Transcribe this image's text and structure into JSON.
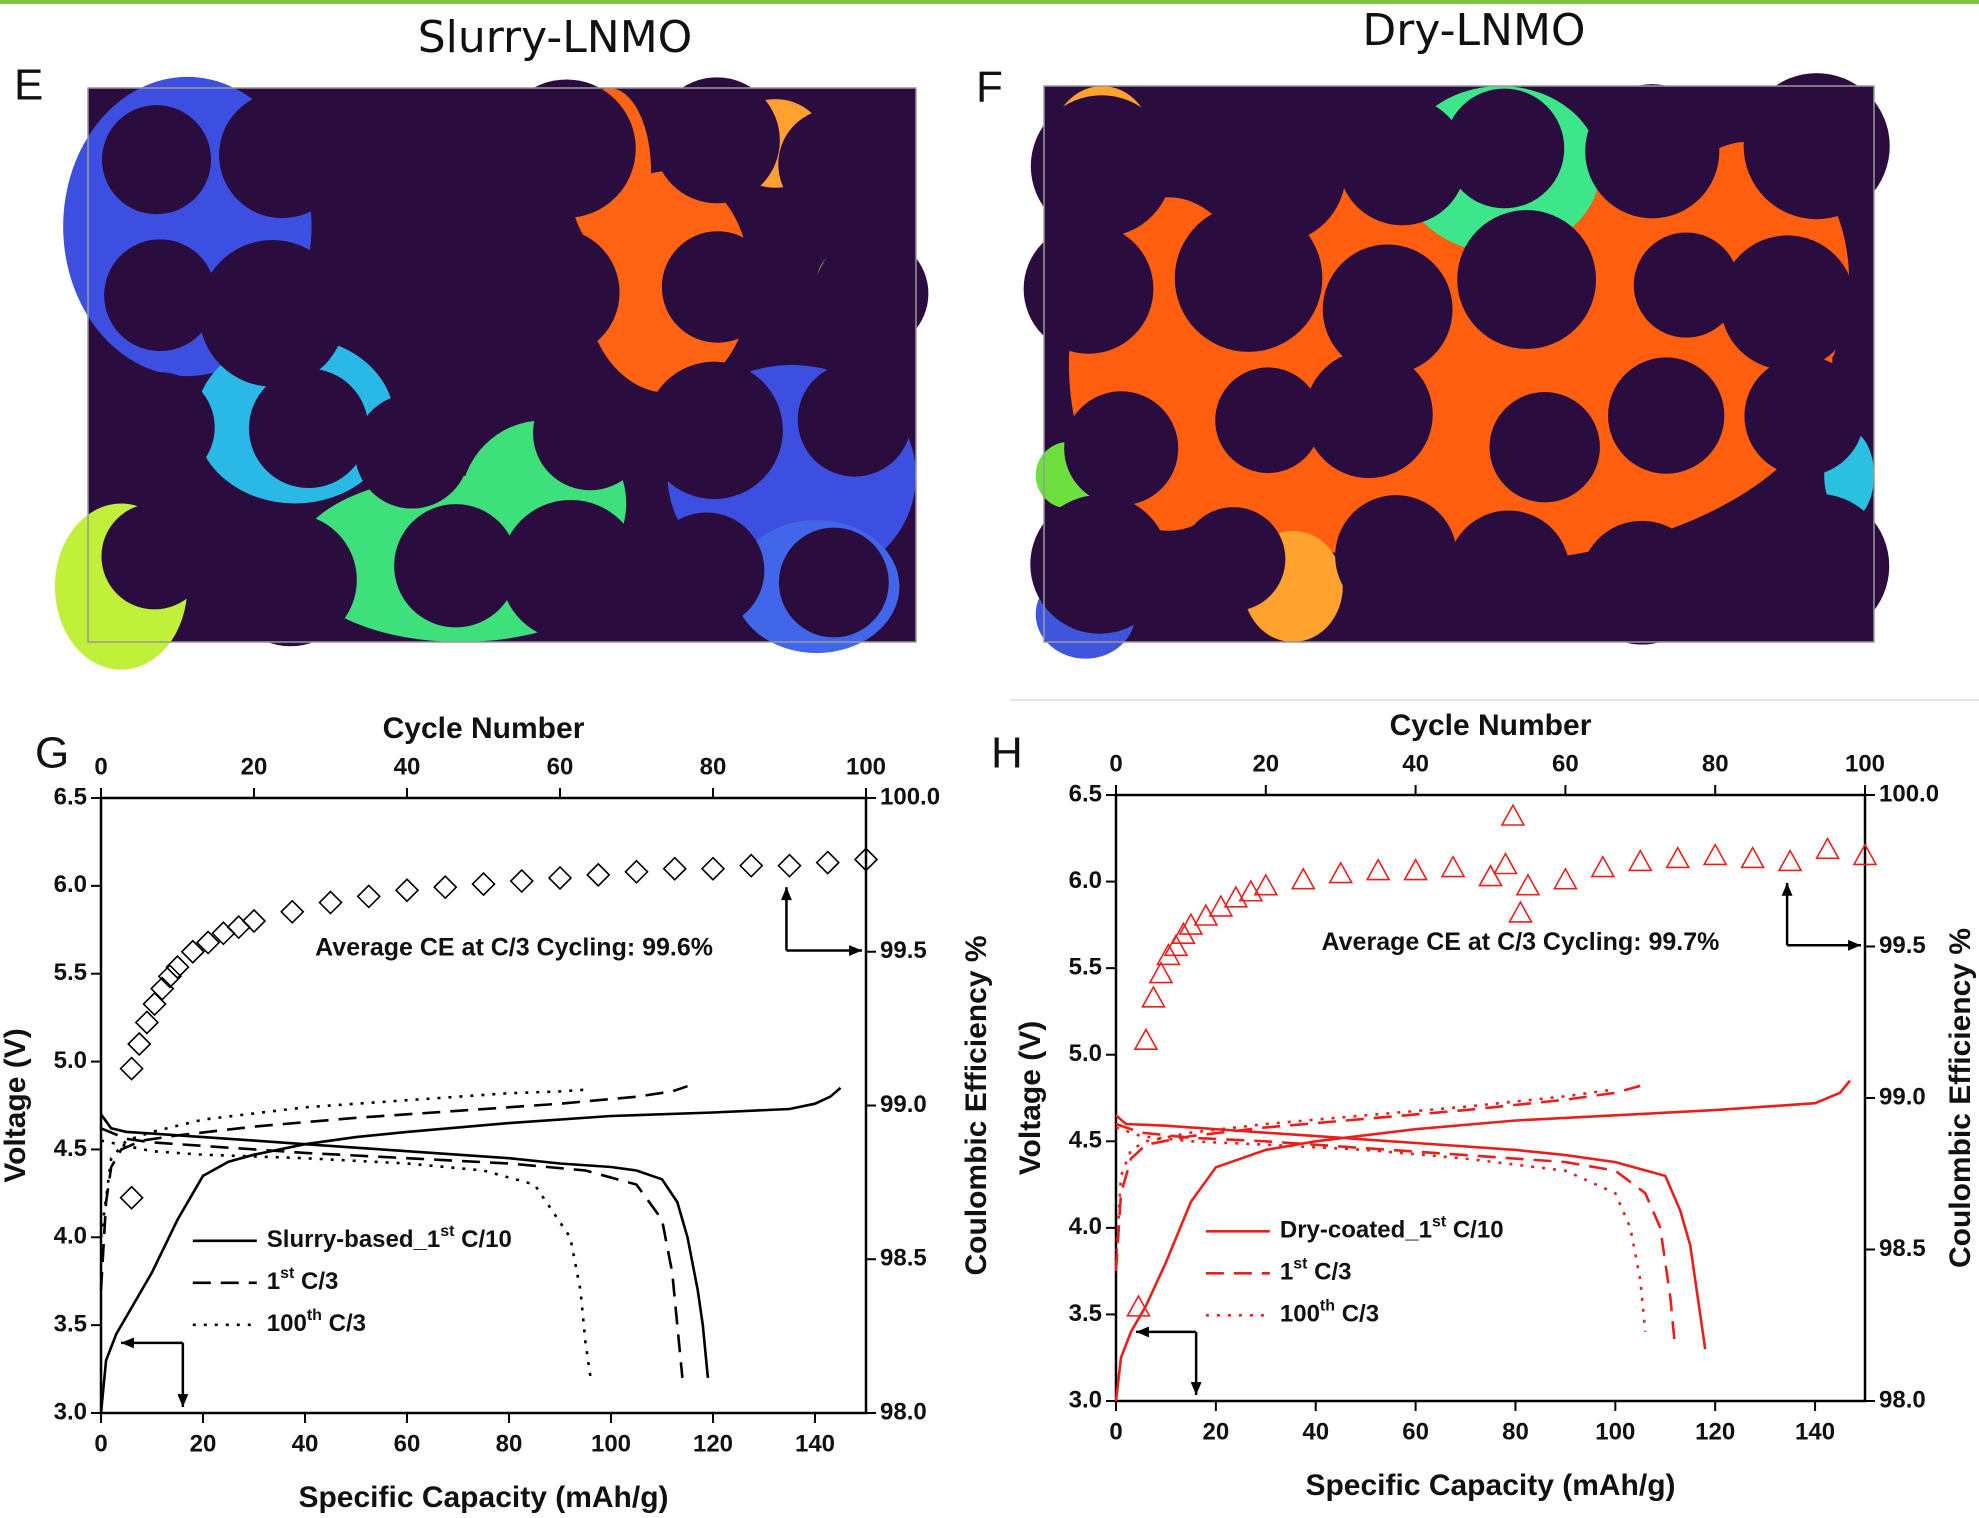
{
  "figure": {
    "panels": [
      {
        "label": "E",
        "title": "Slurry-LNMO"
      },
      {
        "label": "F",
        "title": "Dry-LNMO"
      }
    ]
  },
  "chart_data": [
    {
      "type": "line",
      "panel_label": "G",
      "color": "#000000",
      "xlabel": "Specific Capacity (mAh/g)",
      "ylabel": "Voltage (V)",
      "x2label": "Cycle Number",
      "y2label": "Coulombic Efficiency %",
      "annotation": "Average CE at C/3 Cycling: 99.6%",
      "legend": "lower left",
      "xlim": [
        0,
        150
      ],
      "xticks": [
        0,
        20,
        40,
        60,
        80,
        100,
        120,
        140
      ],
      "x2lim": [
        0,
        100
      ],
      "x2ticks": [
        0,
        20,
        40,
        60,
        80,
        100
      ],
      "ylim": [
        3.0,
        6.5
      ],
      "yticks": [
        {
          "value": 3,
          "label": "3.0"
        },
        3.5,
        {
          "value": 4,
          "label": "4.0"
        },
        4.5,
        {
          "value": 5,
          "label": "5.0"
        },
        5.5,
        {
          "value": 6,
          "label": "6.0"
        },
        6.5
      ],
      "y2lim": [
        98,
        100
      ],
      "y2ticks": [
        {
          "value": 98,
          "label": "98.0"
        },
        98.5,
        {
          "value": 99,
          "label": "99.0"
        },
        99.5,
        {
          "value": 100,
          "label": "100.0"
        }
      ],
      "series": [
        {
          "name": "Slurry-based_1st C/10",
          "color": "#000000",
          "dash": "solid",
          "x": [
            0,
            1,
            3,
            6,
            10,
            15,
            20,
            25,
            30,
            40,
            50,
            60,
            80,
            100,
            120,
            135,
            140,
            143,
            145,
            null,
            0,
            2,
            5,
            10,
            20,
            30,
            40,
            50,
            60,
            70,
            80,
            90,
            100,
            105,
            110,
            113,
            115,
            117,
            118,
            119
          ],
          "values": [
            3.0,
            3.3,
            3.45,
            3.6,
            3.8,
            4.1,
            4.35,
            4.43,
            4.47,
            4.53,
            4.57,
            4.6,
            4.65,
            4.69,
            4.71,
            4.73,
            4.76,
            4.8,
            4.85,
            null,
            4.7,
            4.62,
            4.6,
            4.59,
            4.57,
            4.55,
            4.53,
            4.51,
            4.49,
            4.47,
            4.45,
            4.42,
            4.4,
            4.38,
            4.33,
            4.2,
            4.0,
            3.7,
            3.5,
            3.2
          ]
        },
        {
          "name": "1st C/3",
          "color": "#000000",
          "dash": "dashed",
          "x": [
            0,
            1,
            2,
            4,
            8,
            15,
            30,
            50,
            70,
            90,
            105,
            112,
            115,
            null,
            0,
            5,
            10,
            20,
            40,
            60,
            80,
            95,
            105,
            110,
            112,
            113,
            114
          ],
          "values": [
            3.7,
            4.2,
            4.4,
            4.5,
            4.55,
            4.58,
            4.63,
            4.68,
            4.72,
            4.76,
            4.8,
            4.83,
            4.86,
            null,
            4.62,
            4.56,
            4.54,
            4.52,
            4.48,
            4.45,
            4.42,
            4.38,
            4.3,
            4.1,
            3.8,
            3.5,
            3.2
          ]
        },
        {
          "name": "100th C/3",
          "color": "#000000",
          "dash": "dotted",
          "x": [
            0,
            2,
            5,
            10,
            20,
            40,
            60,
            80,
            90,
            95,
            null,
            0,
            5,
            10,
            20,
            40,
            60,
            75,
            85,
            92,
            94,
            95,
            96
          ],
          "values": [
            4.0,
            4.45,
            4.55,
            4.6,
            4.67,
            4.74,
            4.78,
            4.82,
            4.83,
            4.84,
            null,
            4.55,
            4.52,
            4.49,
            4.47,
            4.45,
            4.42,
            4.38,
            4.3,
            4.0,
            3.7,
            3.4,
            3.2
          ]
        },
        {
          "type": "scatter",
          "marker": "diamond",
          "color": "#000000",
          "axis": "y2",
          "xaxis": "x2",
          "x": [
            4,
            4,
            5,
            6,
            7,
            8,
            9,
            10,
            12,
            14,
            16,
            18,
            20,
            25,
            30,
            35,
            40,
            45,
            50,
            55,
            60,
            65,
            70,
            75,
            80,
            85,
            90,
            95,
            100
          ],
          "values": [
            98.7,
            99.12,
            99.2,
            99.27,
            99.33,
            99.38,
            99.42,
            99.45,
            99.5,
            99.53,
            99.56,
            99.58,
            99.6,
            99.63,
            99.66,
            99.68,
            99.7,
            99.71,
            99.72,
            99.73,
            99.74,
            99.75,
            99.76,
            99.77,
            99.77,
            99.78,
            99.78,
            99.79,
            99.8
          ]
        }
      ]
    },
    {
      "type": "line",
      "panel_label": "H",
      "color": "#e8201c",
      "xlabel": "Specific Capacity (mAh/g)",
      "ylabel": "Voltage (V)",
      "x2label": "Cycle Number",
      "y2label": "Coulombic Efficiency %",
      "annotation": "Average CE at C/3 Cycling: 99.7%",
      "legend": "lower left",
      "xlim": [
        0,
        150
      ],
      "xticks": [
        0,
        20,
        40,
        60,
        80,
        100,
        120,
        140
      ],
      "x2lim": [
        0,
        100
      ],
      "x2ticks": [
        0,
        20,
        40,
        60,
        80,
        100
      ],
      "ylim": [
        3.0,
        6.5
      ],
      "yticks": [
        {
          "value": 3,
          "label": "3.0"
        },
        3.5,
        {
          "value": 4,
          "label": "4.0"
        },
        4.5,
        {
          "value": 5,
          "label": "5.0"
        },
        5.5,
        {
          "value": 6,
          "label": "6.0"
        },
        6.5
      ],
      "y2lim": [
        98,
        100
      ],
      "y2ticks": [
        {
          "value": 98,
          "label": "98.0"
        },
        98.5,
        {
          "value": 99,
          "label": "99.0"
        },
        99.5,
        {
          "value": 100,
          "label": "100.0"
        }
      ],
      "series": [
        {
          "name": "Dry-coated_1st C/10",
          "color": "#e8201c",
          "dash": "solid",
          "x": [
            0,
            1,
            3,
            6,
            10,
            15,
            20,
            30,
            40,
            60,
            80,
            100,
            120,
            140,
            145,
            147,
            null,
            0,
            2,
            10,
            20,
            40,
            60,
            80,
            90,
            100,
            110,
            113,
            115,
            116,
            117,
            118
          ],
          "values": [
            3.0,
            3.25,
            3.4,
            3.55,
            3.8,
            4.15,
            4.35,
            4.45,
            4.5,
            4.57,
            4.62,
            4.65,
            4.68,
            4.72,
            4.78,
            4.85,
            null,
            4.65,
            4.6,
            4.59,
            4.57,
            4.53,
            4.49,
            4.45,
            4.42,
            4.38,
            4.3,
            4.1,
            3.9,
            3.7,
            3.5,
            3.3
          ]
        },
        {
          "name": "1st C/3",
          "color": "#e8201c",
          "dash": "dashed",
          "x": [
            0,
            1,
            3,
            6,
            15,
            30,
            50,
            70,
            90,
            100,
            105,
            null,
            0,
            5,
            15,
            30,
            50,
            70,
            90,
            100,
            106,
            109,
            111,
            112
          ],
          "values": [
            3.75,
            4.2,
            4.4,
            4.48,
            4.53,
            4.58,
            4.63,
            4.68,
            4.74,
            4.78,
            4.82,
            null,
            4.6,
            4.55,
            4.52,
            4.5,
            4.46,
            4.42,
            4.38,
            4.33,
            4.2,
            4.0,
            3.6,
            3.3
          ]
        },
        {
          "name": "100th C/3",
          "color": "#e8201c",
          "dash": "dotted",
          "x": [
            0,
            1,
            3,
            6,
            15,
            30,
            50,
            70,
            90,
            100,
            null,
            0,
            5,
            15,
            30,
            50,
            70,
            90,
            100,
            103,
            105,
            106
          ],
          "values": [
            3.8,
            4.3,
            4.45,
            4.5,
            4.55,
            4.6,
            4.65,
            4.7,
            4.76,
            4.8,
            null,
            4.58,
            4.53,
            4.5,
            4.48,
            4.45,
            4.4,
            4.33,
            4.2,
            4.0,
            3.7,
            3.4
          ]
        },
        {
          "type": "scatter",
          "marker": "triangle",
          "color": "#e8201c",
          "axis": "y2",
          "xaxis": "x2",
          "x": [
            3,
            4,
            5,
            6,
            7,
            8,
            9,
            10,
            12,
            14,
            16,
            18,
            20,
            25,
            30,
            35,
            40,
            45,
            50,
            52,
            53,
            54,
            55,
            60,
            65,
            70,
            75,
            80,
            85,
            90,
            95,
            100
          ],
          "values": [
            98.31,
            99.19,
            99.33,
            99.41,
            99.47,
            99.5,
            99.54,
            99.57,
            99.6,
            99.63,
            99.66,
            99.68,
            99.7,
            99.72,
            99.74,
            99.75,
            99.75,
            99.76,
            99.73,
            99.77,
            99.93,
            99.61,
            99.7,
            99.72,
            99.76,
            99.78,
            99.79,
            99.8,
            99.79,
            99.78,
            99.82,
            99.8
          ]
        }
      ]
    }
  ]
}
